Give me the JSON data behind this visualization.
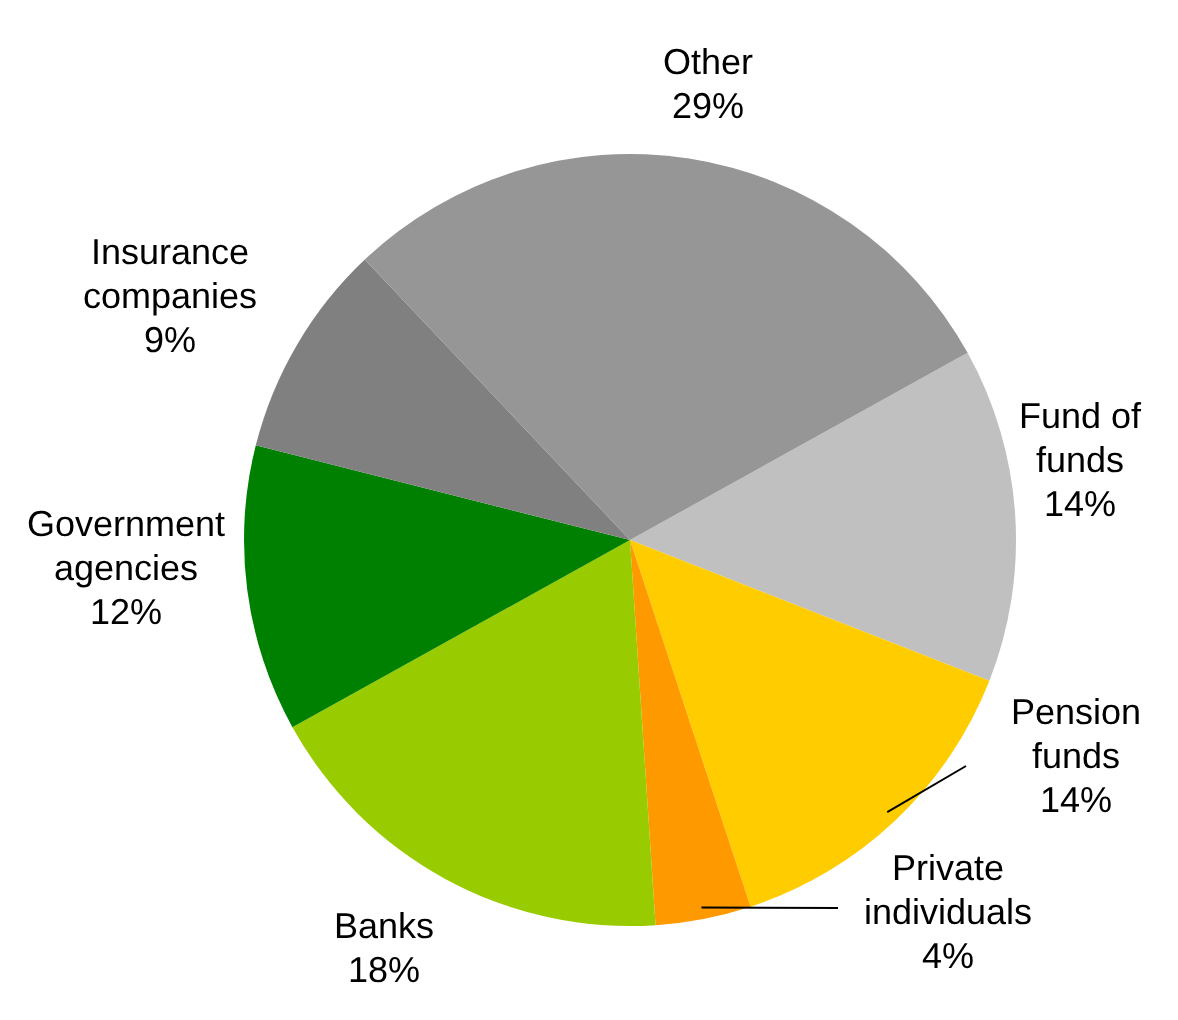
{
  "chart_data": {
    "type": "pie",
    "categories": [
      "Fund of funds",
      "Pension funds",
      "Private individuals",
      "Banks",
      "Government agencies",
      "Insurance companies",
      "Other"
    ],
    "values": [
      14,
      14,
      4,
      18,
      12,
      9,
      29
    ],
    "colors": [
      "#c0c0c0",
      "#ffcc00",
      "#ff9900",
      "#99cc00",
      "#008000",
      "#808080",
      "#969696"
    ],
    "value_labels": [
      "14%",
      "14%",
      "4%",
      "18%",
      "12%",
      "9%",
      "29%"
    ]
  }
}
